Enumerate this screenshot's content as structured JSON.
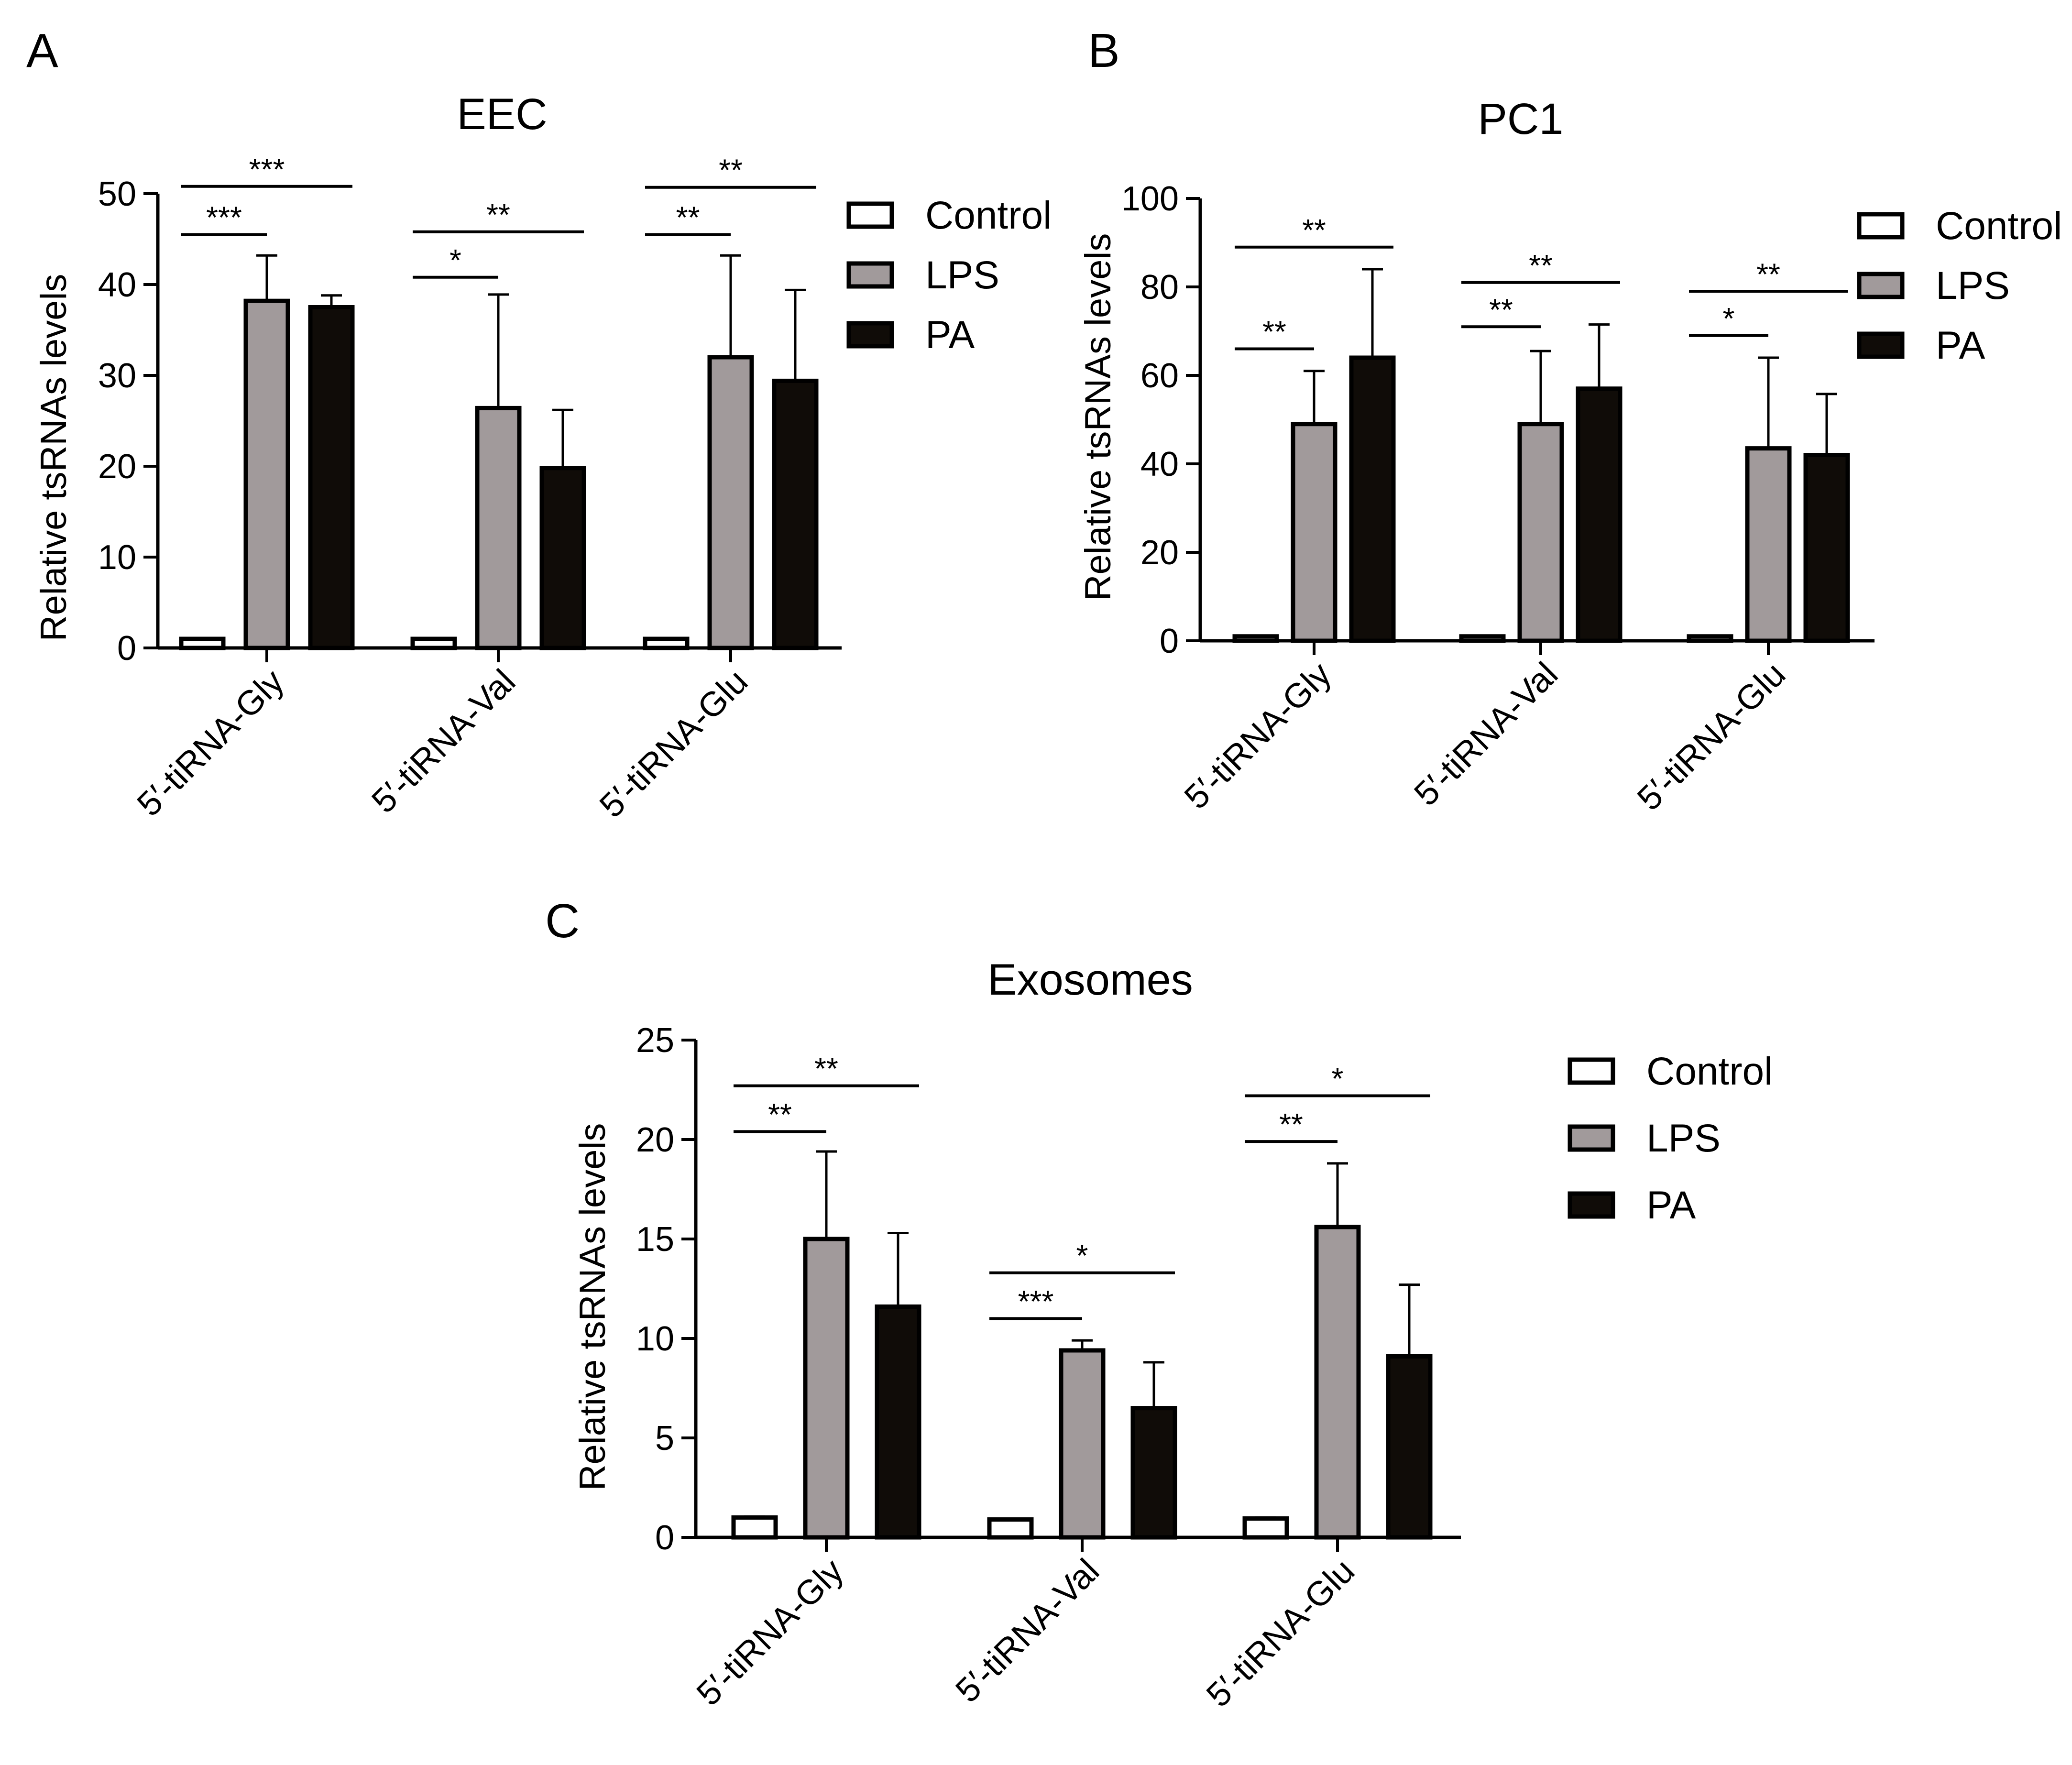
{
  "chart_data": [
    {
      "panel_label": "A",
      "type": "bar",
      "title": "EEC",
      "ylabel": "Relative tsRNAs levels",
      "xlabel": "",
      "ylim": [
        0,
        50
      ],
      "yticks": [
        0,
        10,
        20,
        30,
        40,
        50
      ],
      "categories": [
        "5′-tiRNA-Gly",
        "5′-tiRNA-Val",
        "5′-tiRNA-Glu"
      ],
      "series": [
        {
          "name": "Control",
          "values": [
            1,
            1,
            1
          ],
          "errors": [
            0,
            0,
            0
          ]
        },
        {
          "name": "LPS",
          "values": [
            38.2,
            26.4,
            32
          ],
          "errors": [
            5,
            12.5,
            11.2
          ]
        },
        {
          "name": "PA",
          "values": [
            37.5,
            19.8,
            29.4
          ],
          "errors": [
            1.3,
            6.4,
            10
          ]
        }
      ],
      "legend": [
        "Control",
        "LPS",
        "PA"
      ],
      "legend_position": "right",
      "significance": [
        {
          "category": 0,
          "from": 0,
          "to": 1,
          "label": "***",
          "level": 45.5
        },
        {
          "category": 0,
          "from": 0,
          "to": 2,
          "label": "***",
          "level": 50.8
        },
        {
          "category": 1,
          "from": 0,
          "to": 1,
          "label": "*",
          "level": 40.8
        },
        {
          "category": 1,
          "from": 0,
          "to": 2,
          "label": "**",
          "level": 45.8
        },
        {
          "category": 2,
          "from": 0,
          "to": 1,
          "label": "**",
          "level": 45.5
        },
        {
          "category": 2,
          "from": 0,
          "to": 2,
          "label": "**",
          "level": 50.7
        }
      ]
    },
    {
      "panel_label": "B",
      "type": "bar",
      "title": "PC1",
      "ylabel": "Relative tsRNAs levels",
      "xlabel": "",
      "ylim": [
        0,
        100
      ],
      "yticks": [
        0,
        20,
        40,
        60,
        80,
        100
      ],
      "categories": [
        "5′-tiRNA-Gly",
        "5′-tiRNA-Val",
        "5′-tiRNA-Glu"
      ],
      "series": [
        {
          "name": "Control",
          "values": [
            1,
            1,
            1
          ],
          "errors": [
            0,
            0,
            0
          ]
        },
        {
          "name": "LPS",
          "values": [
            49,
            49,
            43.5
          ],
          "errors": [
            12,
            16.5,
            20.5
          ]
        },
        {
          "name": "PA",
          "values": [
            64,
            57,
            42
          ],
          "errors": [
            20,
            14.5,
            13.8
          ]
        }
      ],
      "legend": [
        "Control",
        "LPS",
        "PA"
      ],
      "legend_position": "right",
      "significance": [
        {
          "category": 0,
          "from": 0,
          "to": 1,
          "label": "**",
          "level": 66
        },
        {
          "category": 0,
          "from": 0,
          "to": 2,
          "label": "**",
          "level": 89
        },
        {
          "category": 1,
          "from": 0,
          "to": 1,
          "label": "**",
          "level": 71
        },
        {
          "category": 1,
          "from": 0,
          "to": 2,
          "label": "**",
          "level": 81
        },
        {
          "category": 2,
          "from": 0,
          "to": 1,
          "label": "*",
          "level": 69
        },
        {
          "category": 2,
          "from": 0,
          "to": 2,
          "label": "**",
          "level": 79
        }
      ]
    },
    {
      "panel_label": "C",
      "type": "bar",
      "title": "Exosomes",
      "ylabel": "Relative tsRNAs levels",
      "xlabel": "",
      "ylim": [
        0,
        25
      ],
      "yticks": [
        0,
        5,
        10,
        15,
        20,
        25
      ],
      "categories": [
        "5′-tiRNA-Gly",
        "5′-tiRNA-Val",
        "5′-tiRNA-Glu"
      ],
      "series": [
        {
          "name": "Control",
          "values": [
            1,
            0.9,
            0.95
          ],
          "errors": [
            0.05,
            0,
            0.05
          ]
        },
        {
          "name": "LPS",
          "values": [
            15,
            9.4,
            15.6
          ],
          "errors": [
            4.4,
            0.5,
            3.2
          ]
        },
        {
          "name": "PA",
          "values": [
            11.6,
            6.5,
            9.1
          ],
          "errors": [
            3.7,
            2.3,
            3.6
          ]
        }
      ],
      "legend": [
        "Control",
        "LPS",
        "PA"
      ],
      "legend_position": "right",
      "significance": [
        {
          "category": 0,
          "from": 0,
          "to": 1,
          "label": "**",
          "level": 20.4
        },
        {
          "category": 0,
          "from": 0,
          "to": 2,
          "label": "**",
          "level": 22.7
        },
        {
          "category": 1,
          "from": 0,
          "to": 1,
          "label": "***",
          "level": 11
        },
        {
          "category": 1,
          "from": 0,
          "to": 2,
          "label": "*",
          "level": 13.3
        },
        {
          "category": 2,
          "from": 0,
          "to": 1,
          "label": "**",
          "level": 19.9
        },
        {
          "category": 2,
          "from": 0,
          "to": 2,
          "label": "*",
          "level": 22.2
        }
      ]
    }
  ],
  "colors": {
    "control": "#ffffff",
    "lps": "#a19a9b",
    "pa": "#100c08",
    "axis": "#000000"
  }
}
